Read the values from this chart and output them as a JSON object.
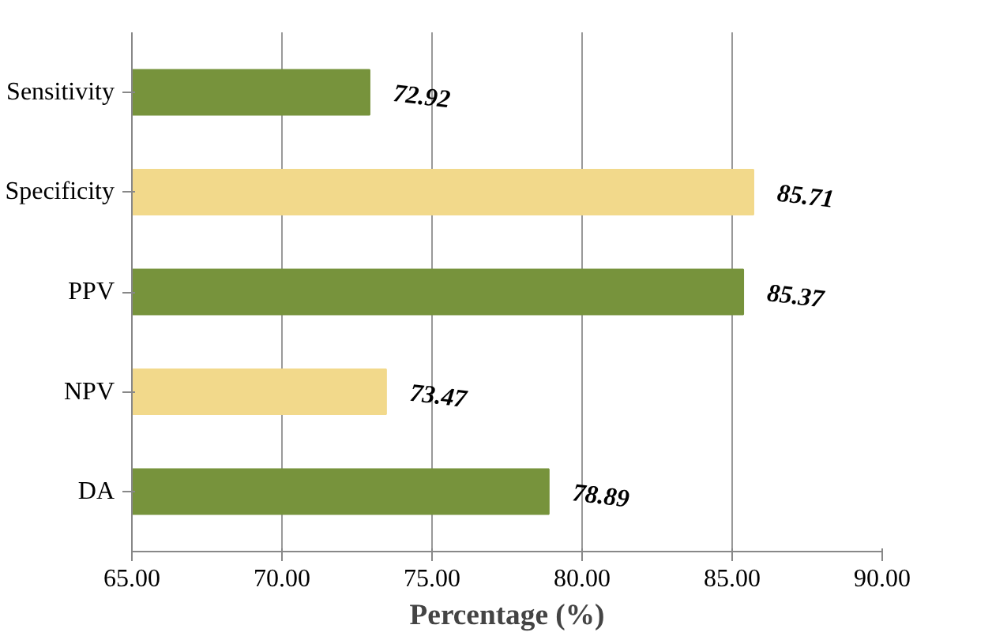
{
  "chart_data": {
    "type": "bar",
    "orientation": "horizontal",
    "xlabel": "Percentage (%)",
    "categories": [
      "Sensitivity",
      "Specificity",
      "PPV",
      "NPV",
      "DA"
    ],
    "values": [
      72.92,
      85.71,
      85.37,
      73.47,
      78.89
    ],
    "colors": [
      "#77933c",
      "#f2d98b",
      "#77933c",
      "#f2d98b",
      "#77933c"
    ],
    "xlim": [
      65,
      90
    ],
    "xticks": [
      {
        "value": 65,
        "label": "65.00"
      },
      {
        "value": 70,
        "label": "70.00"
      },
      {
        "value": 75,
        "label": "75.00"
      },
      {
        "value": 80,
        "label": "80.00"
      },
      {
        "value": 85,
        "label": "85.00"
      },
      {
        "value": 90,
        "label": "90.00"
      }
    ],
    "grid": "x",
    "data_labels": true
  }
}
